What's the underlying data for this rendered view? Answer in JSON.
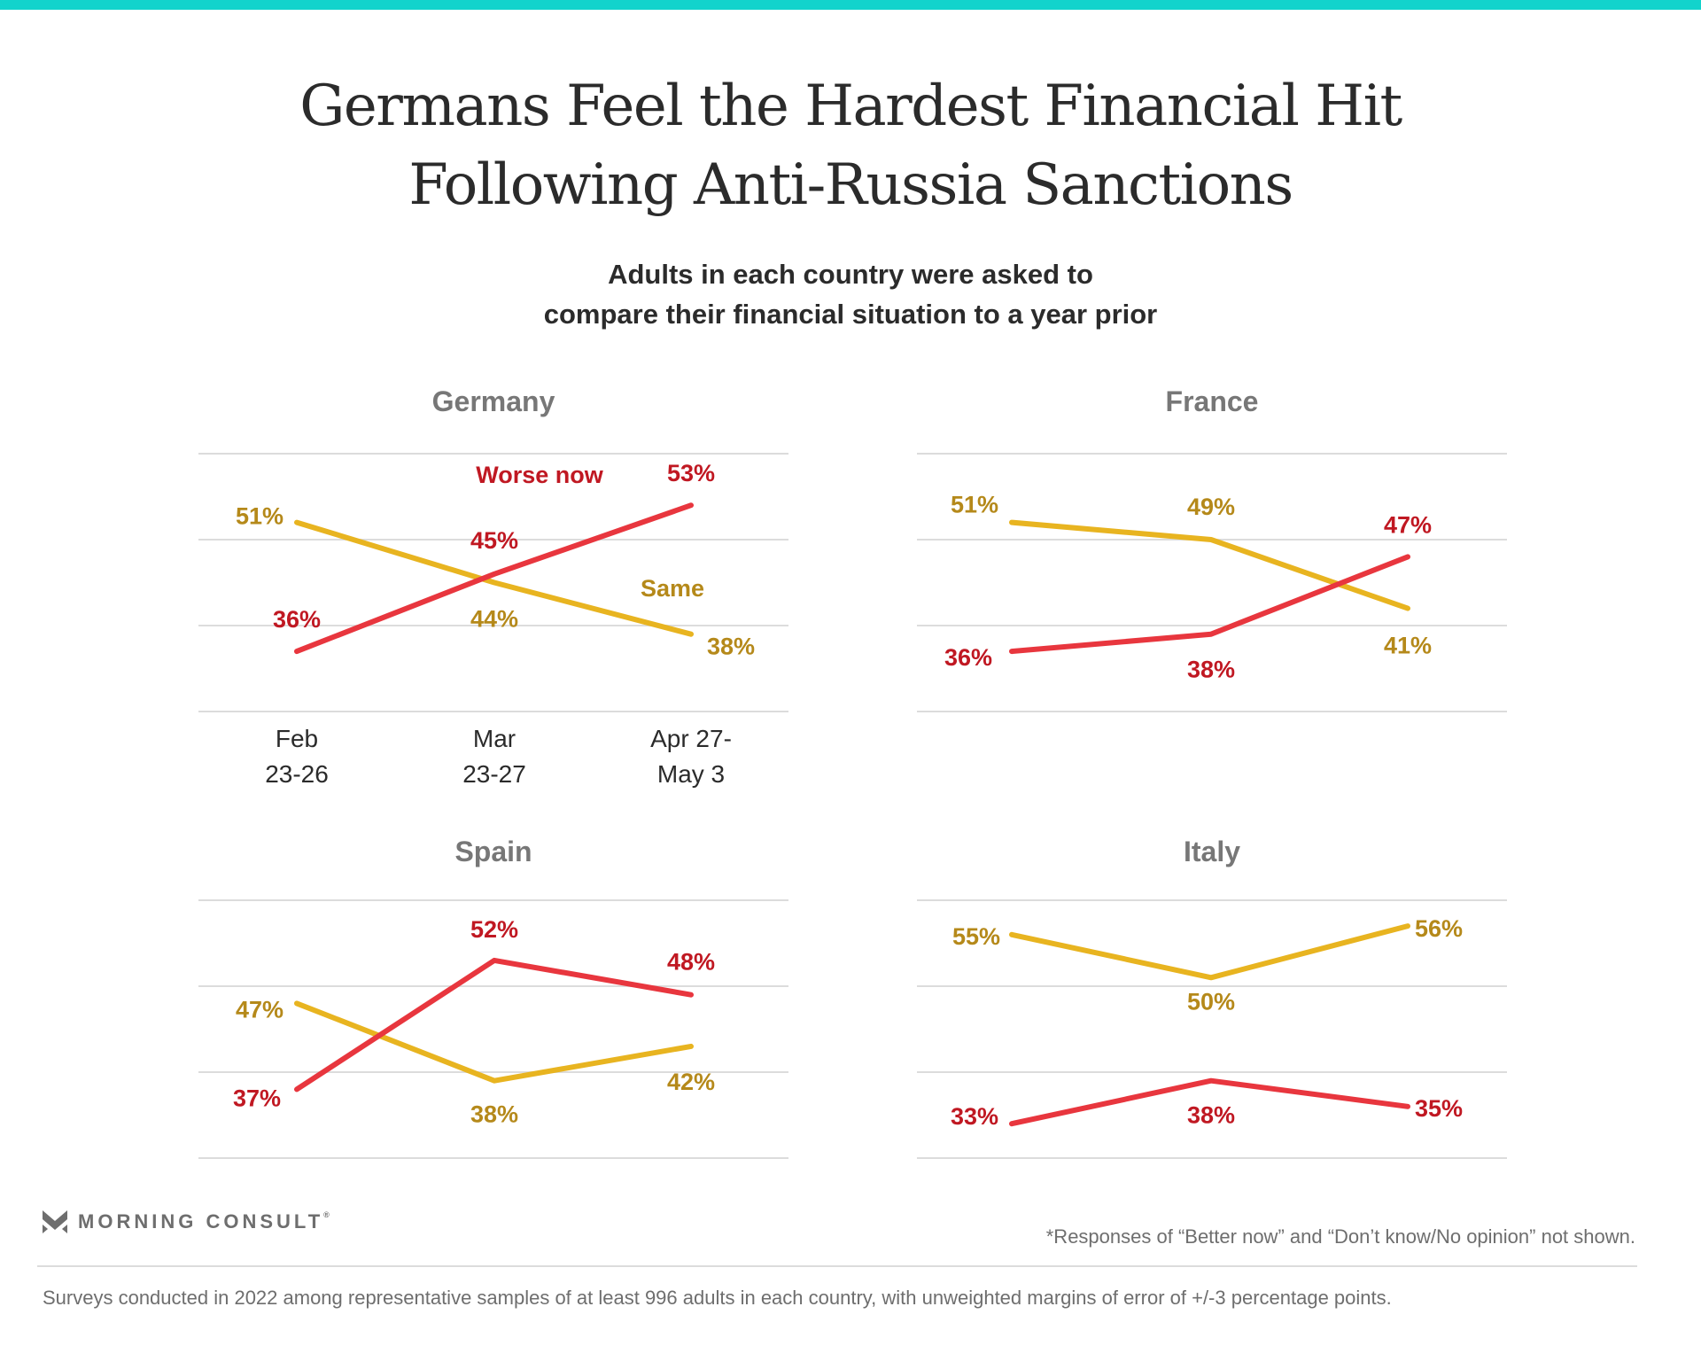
{
  "header": {
    "title_lines": [
      "Germans Feel the Hardest Financial Hit",
      "Following Anti-Russia Sanctions"
    ],
    "subtitle_lines": [
      "Adults in each country were asked to",
      "compare their financial situation to a year prior"
    ]
  },
  "colors": {
    "accent_bar": "#12d3cc",
    "worse_line": "#e8363e",
    "worse_label": "#c01822",
    "same_line": "#e8b420",
    "same_label": "#b5891a"
  },
  "chart_data": [
    {
      "type": "line",
      "title": "Germany",
      "categories": [
        "Feb 23-26",
        "Mar 23-27",
        "Apr 27-May 3"
      ],
      "category_lines": [
        [
          "Feb",
          "23-26"
        ],
        [
          "Mar",
          "23-27"
        ],
        [
          "Apr 27-",
          "May 3"
        ]
      ],
      "show_x_labels": true,
      "ylim": [
        29,
        59
      ],
      "grid": true,
      "series": [
        {
          "name": "Worse now",
          "key": "worse",
          "values": [
            36,
            45,
            53
          ],
          "labels": [
            "36%",
            "45%",
            "53%"
          ],
          "show_name": true
        },
        {
          "name": "Same",
          "key": "same",
          "values": [
            51,
            44,
            38
          ],
          "labels": [
            "51%",
            "44%",
            "38%"
          ],
          "show_name": true
        }
      ]
    },
    {
      "type": "line",
      "title": "France",
      "categories": [
        "Feb 23-26",
        "Mar 23-27",
        "Apr 27-May 3"
      ],
      "show_x_labels": false,
      "ylim": [
        29,
        59
      ],
      "grid": true,
      "series": [
        {
          "name": "Worse now",
          "key": "worse",
          "values": [
            36,
            38,
            47
          ],
          "labels": [
            "36%",
            "38%",
            "47%"
          ],
          "show_name": false
        },
        {
          "name": "Same",
          "key": "same",
          "values": [
            51,
            49,
            41
          ],
          "labels": [
            "51%",
            "49%",
            "41%"
          ],
          "show_name": false
        }
      ]
    },
    {
      "type": "line",
      "title": "Spain",
      "categories": [
        "Feb 23-26",
        "Mar 23-27",
        "Apr 27-May 3"
      ],
      "show_x_labels": false,
      "ylim": [
        29,
        59
      ],
      "grid": true,
      "series": [
        {
          "name": "Worse now",
          "key": "worse",
          "values": [
            37,
            52,
            48
          ],
          "labels": [
            "37%",
            "52%",
            "48%"
          ],
          "show_name": false
        },
        {
          "name": "Same",
          "key": "same",
          "values": [
            47,
            38,
            42
          ],
          "labels": [
            "47%",
            "38%",
            "42%"
          ],
          "show_name": false
        }
      ]
    },
    {
      "type": "line",
      "title": "Italy",
      "categories": [
        "Feb 23-26",
        "Mar 23-27",
        "Apr 27-May 3"
      ],
      "show_x_labels": false,
      "ylim": [
        29,
        59
      ],
      "grid": true,
      "series": [
        {
          "name": "Worse now",
          "key": "worse",
          "values": [
            33,
            38,
            35
          ],
          "labels": [
            "33%",
            "38%",
            "35%"
          ],
          "show_name": false
        },
        {
          "name": "Same",
          "key": "same",
          "values": [
            55,
            50,
            56
          ],
          "labels": [
            "55%",
            "50%",
            "56%"
          ],
          "show_name": false
        }
      ]
    }
  ],
  "footer": {
    "brand": "MORNING CONSULT",
    "brand_mark": "®",
    "footnote": "*Responses of “Better now” and “Don’t know/No opinion” not shown.",
    "source": "Surveys conducted in 2022 among representative samples of at least 996 adults in each country, with unweighted margins of error of +/-3 percentage points."
  }
}
